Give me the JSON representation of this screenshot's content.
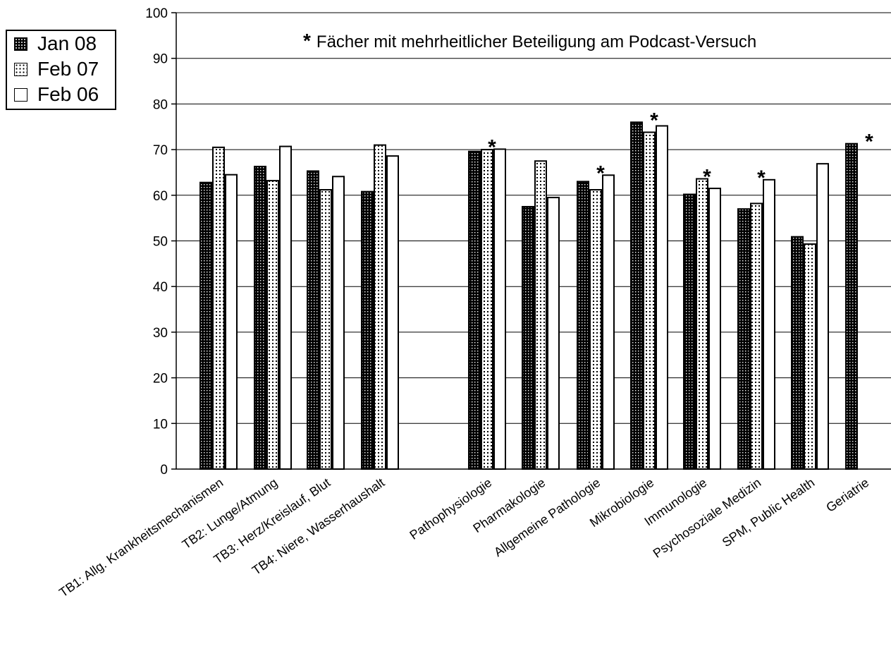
{
  "chart_data": {
    "type": "bar",
    "title": "",
    "xlabel": "",
    "ylabel": "",
    "ylim": [
      0,
      100
    ],
    "yticks": [
      0,
      10,
      20,
      30,
      40,
      50,
      60,
      70,
      80,
      90,
      100
    ],
    "grid": true,
    "legend_position": "top-left, outside plot",
    "categories": [
      "TB1: Allg. Krankheitsmechanismen",
      "TB2: Lunge/Atmung",
      "TB3: Herz/Kreislauf, Blut",
      "TB4: Niere, Wasserhaushalt",
      "Pathophysiologie",
      "Pharmakologie",
      "Allgemeine Pathologie",
      "Mikrobiologie",
      "Immunologie",
      "Psychosoziale Medizin",
      "SPM, Public Health",
      "Geriatrie"
    ],
    "series": [
      {
        "name": "Jan 08",
        "pattern": "dark-dotted",
        "values": [
          62.8,
          66.3,
          65.3,
          60.8,
          69.6,
          57.5,
          63.0,
          76.0,
          60.2,
          57.0,
          50.9,
          71.3
        ]
      },
      {
        "name": "Feb 07",
        "pattern": "light-dotted",
        "values": [
          70.5,
          63.2,
          61.2,
          71.0,
          70.0,
          67.5,
          61.2,
          73.8,
          63.6,
          58.2,
          49.3,
          null
        ]
      },
      {
        "name": "Feb 06",
        "pattern": "white",
        "values": [
          64.5,
          70.7,
          64.1,
          68.6,
          70.1,
          59.5,
          64.4,
          75.2,
          61.5,
          63.4,
          66.9,
          null
        ]
      }
    ],
    "starred_categories": [
      "Pathophysiologie",
      "Allgemeine Pathologie",
      "Mikrobiologie",
      "Immunologie",
      "Psychosoziale Medizin",
      "Geriatrie"
    ],
    "annotation": "Fächer mit mehrheitlicher Beteiligung am Podcast-Versuch",
    "annotation_marker": "*",
    "colors": {
      "bar_outline": "#000000",
      "grid": "#000000",
      "background": "#ffffff"
    }
  }
}
